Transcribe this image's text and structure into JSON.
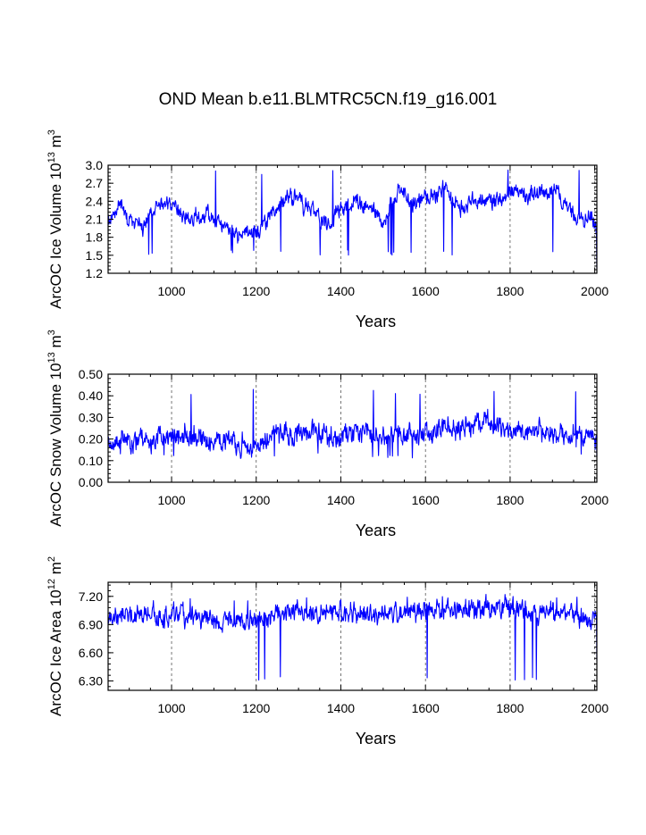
{
  "title": "OND Mean b.e11.BLMTRC5CN.f19_g16.001",
  "colors": {
    "series": "#0000ff",
    "axes": "#000000",
    "grid": "#555555"
  },
  "chart_data": [
    {
      "type": "line",
      "name": "ice-volume",
      "ylabel_main": "ArcOC Ice Volume 10",
      "ylabel_exp": "13",
      "ylabel_unit": "m",
      "ylabel_unit_exp": "3",
      "xlabel": "Years",
      "xlim": [
        850,
        2005
      ],
      "ylim": [
        1.2,
        3.0
      ],
      "yticks": [
        1.2,
        1.5,
        1.8,
        2.1,
        2.4,
        2.7,
        3.0
      ],
      "ytick_labels": [
        "1.2",
        "1.5",
        "1.8",
        "2.1",
        "2.4",
        "2.7",
        "3.0"
      ],
      "xticks": [
        1000,
        1200,
        1400,
        1600,
        1800,
        2000
      ],
      "xtick_labels": [
        "1000",
        "1200",
        "1400",
        "1600",
        "1800",
        "2000"
      ],
      "grid_x": [
        1000,
        1200,
        1400,
        1600,
        1800,
        2000
      ],
      "x_start": 850,
      "x_end": 2005,
      "trend": [
        [
          850,
          2.1
        ],
        [
          880,
          2.4
        ],
        [
          900,
          2.05
        ],
        [
          930,
          1.95
        ],
        [
          960,
          2.25
        ],
        [
          1000,
          2.35
        ],
        [
          1040,
          2.1
        ],
        [
          1080,
          2.2
        ],
        [
          1120,
          2.0
        ],
        [
          1160,
          1.85
        ],
        [
          1200,
          1.9
        ],
        [
          1230,
          2.1
        ],
        [
          1260,
          2.45
        ],
        [
          1300,
          2.45
        ],
        [
          1340,
          2.2
        ],
        [
          1370,
          2.0
        ],
        [
          1400,
          2.25
        ],
        [
          1430,
          2.4
        ],
        [
          1470,
          2.3
        ],
        [
          1500,
          2.0
        ],
        [
          1540,
          2.6
        ],
        [
          1570,
          2.3
        ],
        [
          1600,
          2.45
        ],
        [
          1640,
          2.6
        ],
        [
          1680,
          2.3
        ],
        [
          1720,
          2.4
        ],
        [
          1760,
          2.4
        ],
        [
          1800,
          2.55
        ],
        [
          1840,
          2.5
        ],
        [
          1880,
          2.55
        ],
        [
          1910,
          2.6
        ],
        [
          1940,
          2.25
        ],
        [
          1970,
          2.05
        ],
        [
          1990,
          2.15
        ],
        [
          2005,
          1.9
        ]
      ],
      "noise_amp": 0.13,
      "seed": 11,
      "min_y": 1.5,
      "max_y": 2.92,
      "final_drop": 1.28
    },
    {
      "type": "line",
      "name": "snow-volume",
      "ylabel_main": "ArcOC Snow Volume 10",
      "ylabel_exp": "13",
      "ylabel_unit": "m",
      "ylabel_unit_exp": "3",
      "xlabel": "Years",
      "xlim": [
        850,
        2005
      ],
      "ylim": [
        0.0,
        0.5
      ],
      "yticks": [
        0.0,
        0.1,
        0.2,
        0.3,
        0.4,
        0.5
      ],
      "ytick_labels": [
        "0.00",
        "0.10",
        "0.20",
        "0.30",
        "0.40",
        "0.50"
      ],
      "xticks": [
        1000,
        1200,
        1400,
        1600,
        1800,
        2000
      ],
      "xtick_labels": [
        "1000",
        "1200",
        "1400",
        "1600",
        "1800",
        "2000"
      ],
      "grid_x": [
        1000,
        1200,
        1400,
        1600,
        1800,
        2000
      ],
      "x_start": 850,
      "x_end": 2005,
      "trend": [
        [
          850,
          0.19
        ],
        [
          950,
          0.2
        ],
        [
          1050,
          0.21
        ],
        [
          1100,
          0.2
        ],
        [
          1160,
          0.17
        ],
        [
          1200,
          0.18
        ],
        [
          1260,
          0.23
        ],
        [
          1300,
          0.22
        ],
        [
          1340,
          0.23
        ],
        [
          1380,
          0.2
        ],
        [
          1420,
          0.23
        ],
        [
          1500,
          0.22
        ],
        [
          1560,
          0.21
        ],
        [
          1600,
          0.23
        ],
        [
          1660,
          0.25
        ],
        [
          1700,
          0.26
        ],
        [
          1760,
          0.27
        ],
        [
          1800,
          0.24
        ],
        [
          1860,
          0.25
        ],
        [
          1920,
          0.22
        ],
        [
          1980,
          0.21
        ],
        [
          2005,
          0.2
        ]
      ],
      "noise_amp": 0.045,
      "seed": 23,
      "min_y": 0.11,
      "max_y": 0.43,
      "final_drop": 0.12
    },
    {
      "type": "line",
      "name": "ice-area",
      "ylabel_main": "ArcOC Ice Area 10",
      "ylabel_exp": "12",
      "ylabel_unit": "m",
      "ylabel_unit_exp": "2",
      "xlabel": "Years",
      "xlim": [
        850,
        2005
      ],
      "ylim": [
        6.2,
        7.35
      ],
      "yticks": [
        6.3,
        6.6,
        6.9,
        7.2
      ],
      "ytick_labels": [
        "6.30",
        "6.60",
        "6.90",
        "7.20"
      ],
      "xticks": [
        1000,
        1200,
        1400,
        1600,
        1800,
        2000
      ],
      "xtick_labels": [
        "1000",
        "1200",
        "1400",
        "1600",
        "1800",
        "2000"
      ],
      "grid_x": [
        1000,
        1200,
        1400,
        1600,
        1800,
        2000
      ],
      "x_start": 850,
      "x_end": 2005,
      "trend": [
        [
          850,
          7.02
        ],
        [
          950,
          6.98
        ],
        [
          1050,
          6.98
        ],
        [
          1150,
          6.93
        ],
        [
          1200,
          6.96
        ],
        [
          1300,
          7.04
        ],
        [
          1400,
          7.02
        ],
        [
          1500,
          7.02
        ],
        [
          1600,
          7.06
        ],
        [
          1700,
          7.06
        ],
        [
          1800,
          7.07
        ],
        [
          1900,
          7.02
        ],
        [
          1960,
          6.98
        ],
        [
          2005,
          6.95
        ]
      ],
      "noise_amp": 0.1,
      "seed": 37,
      "min_y": 6.3,
      "max_y": 7.2,
      "final_drop": 6.52
    }
  ]
}
